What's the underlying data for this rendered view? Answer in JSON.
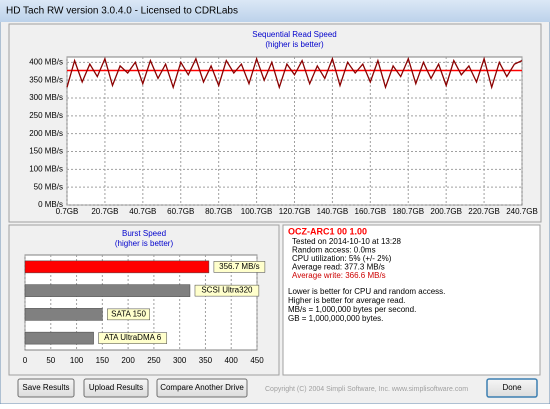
{
  "window": {
    "title": "HD Tach RW version 3.0.4.0 - Licensed to CDRLabs"
  },
  "chart_data": [
    {
      "type": "line",
      "title": "Sequential Read Speed",
      "subtitle": "(higher is better)",
      "x": [
        0.7,
        4.7,
        8.7,
        12.7,
        16.7,
        20.7,
        24.7,
        28.7,
        32.7,
        36.7,
        40.7,
        44.7,
        48.7,
        52.7,
        56.7,
        60.7,
        64.7,
        68.7,
        72.7,
        76.7,
        80.7,
        84.7,
        88.7,
        92.7,
        96.7,
        100.7,
        104.7,
        108.7,
        112.7,
        116.7,
        120.7,
        124.7,
        128.7,
        132.7,
        136.7,
        140.7,
        144.7,
        148.7,
        152.7,
        156.7,
        160.7,
        164.7,
        168.7,
        172.7,
        176.7,
        180.7,
        184.7,
        188.7,
        192.7,
        196.7,
        200.7,
        204.7,
        208.7,
        212.7,
        216.7,
        220.7,
        224.7,
        228.7,
        232.7,
        236.7,
        240.7
      ],
      "values": [
        330,
        405,
        345,
        395,
        360,
        410,
        335,
        390,
        370,
        400,
        340,
        405,
        355,
        395,
        330,
        400,
        365,
        410,
        345,
        390,
        335,
        405,
        370,
        395,
        340,
        410,
        350,
        400,
        330,
        395,
        365,
        405,
        340,
        390,
        355,
        410,
        335,
        400,
        370,
        395,
        345,
        405,
        330,
        390,
        360,
        410,
        340,
        400,
        355,
        395,
        335,
        405,
        365,
        390,
        345,
        410,
        330,
        400,
        360,
        395,
        405
      ],
      "color": "#8b0000",
      "reference_line": {
        "value": 377.3,
        "color": "#ff0000"
      },
      "xlim": [
        0.7,
        240.7
      ],
      "xticks": [
        {
          "value": 0.7,
          "label": "0.7GB"
        },
        {
          "value": 20.7,
          "label": "20.7GB"
        },
        {
          "value": 40.7,
          "label": "40.7GB"
        },
        {
          "value": 60.7,
          "label": "60.7GB"
        },
        {
          "value": 80.7,
          "label": "80.7GB"
        },
        {
          "value": 100.7,
          "label": "100.7GB"
        },
        {
          "value": 120.7,
          "label": "120.7GB"
        },
        {
          "value": 140.7,
          "label": "140.7GB"
        },
        {
          "value": 160.7,
          "label": "160.7GB"
        },
        {
          "value": 180.7,
          "label": "180.7GB"
        },
        {
          "value": 200.7,
          "label": "200.7GB"
        },
        {
          "value": 220.7,
          "label": "220.7GB"
        },
        {
          "value": 240.7,
          "label": "240.7GB"
        }
      ],
      "ylim": [
        0,
        415
      ],
      "yticks": [
        {
          "value": 0,
          "label": "0 MB/s"
        },
        {
          "value": 50,
          "label": "50 MB/s"
        },
        {
          "value": 100,
          "label": "100 MB/s"
        },
        {
          "value": 150,
          "label": "150 MB/s"
        },
        {
          "value": 200,
          "label": "200 MB/s"
        },
        {
          "value": 250,
          "label": "250 MB/s"
        },
        {
          "value": 300,
          "label": "300 MB/s"
        },
        {
          "value": 350,
          "label": "350 MB/s"
        },
        {
          "value": 400,
          "label": "400 MB/s"
        }
      ],
      "grid": true
    },
    {
      "type": "bar",
      "title": "Burst Speed",
      "subtitle": "(higher is better)",
      "labels": [
        "356.7 MB/s",
        "SCSI Ultra320",
        "SATA 150",
        "ATA UltraDMA 6"
      ],
      "values": [
        356.7,
        320,
        150,
        133
      ],
      "colors": [
        "#ff0000",
        "#808080",
        "#808080",
        "#808080"
      ],
      "xlim": [
        0,
        450
      ],
      "xticks": [
        0,
        50,
        100,
        150,
        200,
        250,
        300,
        350,
        400,
        450
      ],
      "grid": true
    }
  ],
  "info": {
    "drive": "OCZ-ARC1 00 1.00",
    "lines": [
      "Tested on 2014-10-10 at 13:28",
      "Random access: 0.0ms",
      "CPU utilization: 5% (+/- 2%)",
      "Average read: 377.3 MB/s",
      "Average write: 366.6 MB/s"
    ],
    "notes": [
      "Lower is better for CPU and random access.",
      "Higher is better for average read.",
      "MB/s = 1,000,000 bytes per second.",
      "GB = 1,000,000,000 bytes."
    ]
  },
  "buttons": [
    "Save Results",
    "Upload Results",
    "Compare Another Drive"
  ],
  "copyright": "Copyright (C) 2004 Simpli Software, Inc. www.simplisoftware.com",
  "done": "Done"
}
